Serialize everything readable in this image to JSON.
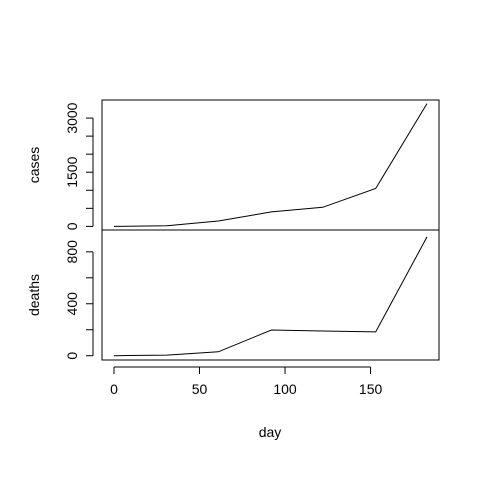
{
  "chart_data": [
    {
      "type": "line",
      "panel": "top",
      "ylabel": "cases",
      "x": [
        0,
        31,
        61,
        92,
        122,
        153,
        183
      ],
      "y": [
        0,
        15,
        150,
        400,
        530,
        1050,
        3400
      ],
      "yticks_labeled": [
        0,
        1500,
        3000
      ],
      "yticks_all": [
        0,
        500,
        1000,
        1500,
        2000,
        2500,
        3000
      ],
      "ylim": [
        -100,
        3500
      ],
      "xlim": [
        -7,
        190
      ]
    },
    {
      "type": "line",
      "panel": "bottom",
      "ylabel": "deaths",
      "xlabel": "day",
      "x": [
        0,
        31,
        61,
        92,
        122,
        153,
        183
      ],
      "y": [
        0,
        5,
        30,
        198,
        190,
        183,
        915
      ],
      "yticks_labeled": [
        0,
        400,
        800
      ],
      "yticks_all": [
        0,
        200,
        400,
        600,
        800
      ],
      "xticks": [
        0,
        50,
        100,
        150
      ],
      "ylim": [
        -33,
        968
      ],
      "xlim": [
        -7,
        190
      ]
    }
  ]
}
